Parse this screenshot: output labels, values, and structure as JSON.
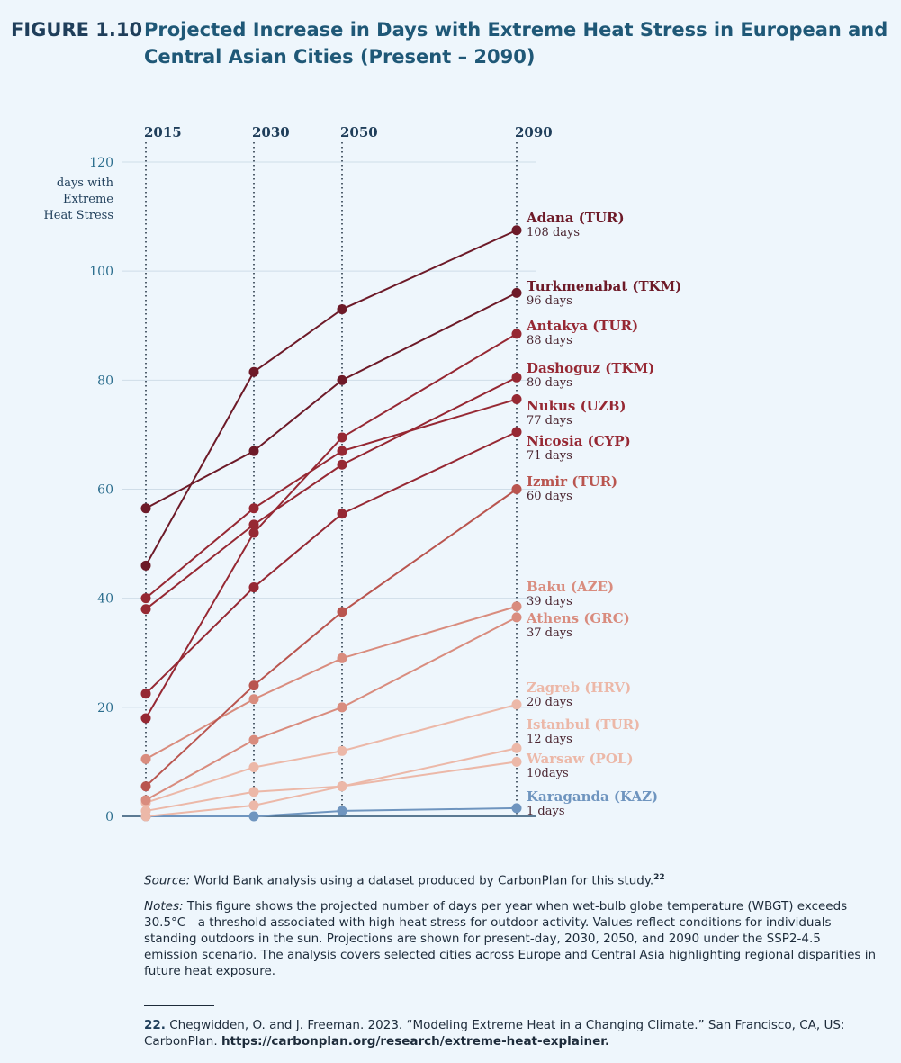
{
  "figure": {
    "label": "FIGURE 1.10",
    "title": "Projected Increase in Days with Extreme Heat Stress in European and Central Asian Cities (Present – 2090)"
  },
  "chart_data": {
    "type": "line",
    "x": [
      "2015",
      "2030",
      "2050",
      "2090"
    ],
    "ylabel": [
      "days with",
      "Extreme",
      "Heat Stress"
    ],
    "ylim": [
      0,
      120
    ],
    "yticks": [
      0,
      20,
      40,
      60,
      80,
      100,
      120
    ],
    "grid": true,
    "series": [
      {
        "name": "Adana (TUR)",
        "days_label": "108 days",
        "values": [
          46,
          81.5,
          93,
          107.5
        ],
        "color": "#6d1a28"
      },
      {
        "name": "Turkmenabat (TKM)",
        "days_label": "96 days",
        "values": [
          56.5,
          67,
          80,
          96
        ],
        "color": "#6d1a28"
      },
      {
        "name": "Antakya (TUR)",
        "days_label": "88 days",
        "values": [
          18,
          52,
          69.5,
          88.5
        ],
        "color": "#962833"
      },
      {
        "name": "Dashoguz (TKM)",
        "days_label": "80 days",
        "values": [
          38,
          53.5,
          64.5,
          80.5
        ],
        "color": "#962833"
      },
      {
        "name": "Nukus (UZB)",
        "days_label": "77 days",
        "values": [
          40,
          56.5,
          67,
          76.5
        ],
        "color": "#962833"
      },
      {
        "name": "Nicosia (CYP)",
        "days_label": "71 days",
        "values": [
          22.5,
          42,
          55.5,
          70.5
        ],
        "color": "#962833"
      },
      {
        "name": "Izmir (TUR)",
        "days_label": "60 days",
        "values": [
          5.5,
          24,
          37.5,
          60
        ],
        "color": "#b9554f"
      },
      {
        "name": "Baku (AZE)",
        "days_label": "39 days",
        "values": [
          10.5,
          21.5,
          29,
          38.5
        ],
        "color": "#d98c7e"
      },
      {
        "name": "Athens (GRC)",
        "days_label": "37 days",
        "values": [
          3,
          14,
          20,
          36.5
        ],
        "color": "#d98c7e"
      },
      {
        "name": "Zagreb (HRV)",
        "days_label": "20 days",
        "values": [
          2.5,
          9,
          12,
          20.5
        ],
        "color": "#ecb8a8"
      },
      {
        "name": "Istanbul (TUR)",
        "days_label": "12 days",
        "values": [
          1,
          4.5,
          5.5,
          12.5
        ],
        "color": "#ecb8a8"
      },
      {
        "name": "Warsaw (POL)",
        "days_label": "10days",
        "values": [
          0,
          2,
          5.5,
          10
        ],
        "color": "#ecb8a8"
      },
      {
        "name": "Karaganda (KAZ)",
        "days_label": "1 days",
        "values": [
          0,
          0,
          1,
          1.5
        ],
        "color": "#6f95bf"
      }
    ]
  },
  "notes": {
    "source_label": "Source:",
    "source_text": " World Bank analysis using a dataset produced by CarbonPlan for this study.",
    "source_ref": "22",
    "notes_label": "Notes:",
    "notes_text": " This figure shows the projected number of days per year when wet-bulb globe temperature (WBGT) exceeds 30.5°C—a threshold associated with high heat stress for outdoor activity. Values reflect conditions for individuals standing outdoors in the sun. Projections are shown for present-day, 2030, 2050, and 2090 under the SSP2-4.5 emission scenario. The analysis covers selected cities across Europe and Central Asia highlighting regional disparities in future heat exposure."
  },
  "footnote": {
    "number": "22.",
    "text": " Chegwidden, O. and J. Freeman. 2023. “Modeling Extreme Heat in a Changing Climate.” San Francisco, CA, US: CarbonPlan. ",
    "url": "https://carbonplan.org/research/extreme-heat-explainer."
  }
}
